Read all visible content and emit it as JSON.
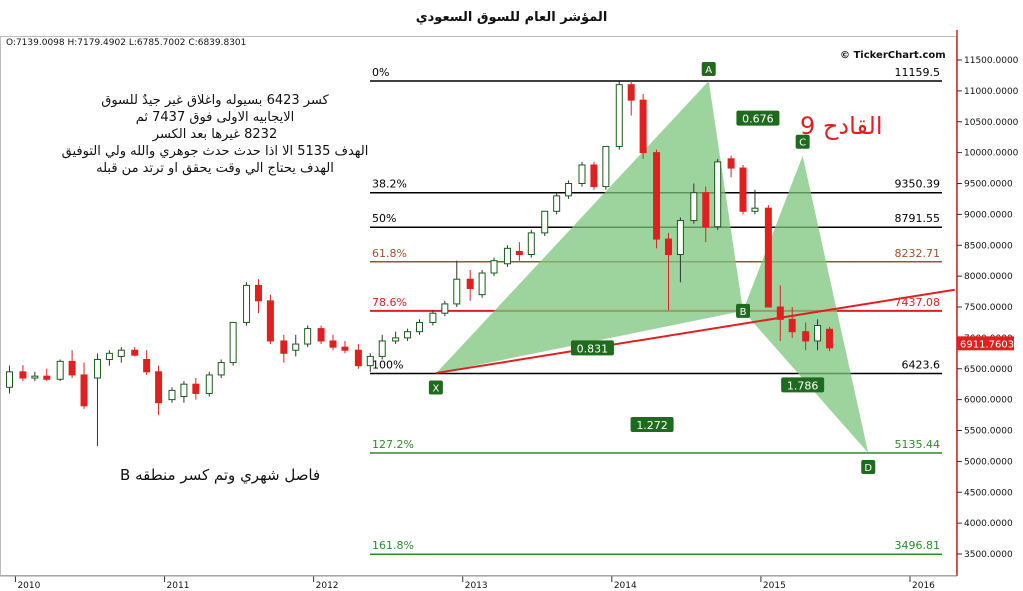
{
  "title": "المؤشر العام للسوق السعودي",
  "ohlc_readout": "O:7139.0098 H:7179.4902 L:6785.7002 C:6839.8301",
  "brand": "© TickerChart.com",
  "notes": {
    "top_lines": [
      "كسر 6423 بسيوله واغلاق غير جيدٌ للسوق",
      "الايجابيه الاولى فوق 7437 ثم",
      "8232 غيرها بعد الكسر",
      "الهدف 5135 الا اذا حدث حدث جوهري والله ولي التوفيق",
      "الهدف يحتاج الي وقت يحقق او ترتد من قبله"
    ],
    "next_label": "القادح 9",
    "bottom_note": "فاصل شهري وتم كسر منطقه B"
  },
  "colors": {
    "up_candle": "#1a7a1a",
    "down_candle": "#e02020",
    "pattern_fill": "#7cc57c",
    "trendline": "#e02020",
    "current_price_bg": "#e02020",
    "axis_border": "#e02020"
  },
  "chart_data": {
    "type": "candlestick",
    "title": "المؤشر العام للسوق السعودي",
    "interval": "monthly",
    "x_ticks": [
      "2010",
      "2011",
      "2012",
      "2013",
      "2014",
      "2015",
      "2016"
    ],
    "y_ticks": [
      "3500.0000",
      "4000.0000",
      "4500.0000",
      "5000.0000",
      "5500.0000",
      "6000.0000",
      "6500.0000",
      "7000.0000",
      "7500.0000",
      "8000.0000",
      "8500.0000",
      "9000.0000",
      "9500.0000",
      "10000.0000",
      "10500.0000",
      "11000.0000",
      "11500.0000"
    ],
    "ylim": [
      3300,
      12000
    ],
    "current_price": "6911.7603",
    "fib_levels": [
      {
        "pct": "0%",
        "value": "11159.5",
        "color": "#000000"
      },
      {
        "pct": "38.2%",
        "value": "9350.39",
        "color": "#000000"
      },
      {
        "pct": "50%",
        "value": "8791.55",
        "color": "#000000"
      },
      {
        "pct": "61.8%",
        "value": "8232.71",
        "color": "#a0522d"
      },
      {
        "pct": "78.6%",
        "value": "7437.08",
        "color": "#e02020"
      },
      {
        "pct": "100%",
        "value": "6423.6",
        "color": "#000000"
      },
      {
        "pct": "127.2%",
        "value": "5135.44",
        "color": "#2e8b2e"
      },
      {
        "pct": "161.8%",
        "value": "3496.81",
        "color": "#2e8b2e"
      }
    ],
    "pattern_points": [
      {
        "label": "X",
        "x": 2012.82,
        "y": 6423
      },
      {
        "label": "A",
        "x": 2014.65,
        "y": 11159
      },
      {
        "label": "B",
        "x": 2014.88,
        "y": 7437
      },
      {
        "label": "C",
        "x": 2015.28,
        "y": 9950
      },
      {
        "label": "D",
        "x": 2015.72,
        "y": 5135
      }
    ],
    "ratios": [
      {
        "label": "0.676",
        "x": 2014.98,
        "y": 10550
      },
      {
        "label": "0.831",
        "x": 2013.87,
        "y": 6830
      },
      {
        "label": "1.786",
        "x": 2015.28,
        "y": 6230
      },
      {
        "label": "1.272",
        "x": 2014.27,
        "y": 5590
      }
    ],
    "trendline": [
      {
        "x": 2012.82,
        "y": 6430
      },
      {
        "x": 2016.3,
        "y": 7780
      }
    ],
    "candles": [
      {
        "x": 2009.96,
        "o": 6200,
        "h": 6550,
        "l": 6100,
        "c": 6450
      },
      {
        "x": 2010.05,
        "o": 6450,
        "h": 6560,
        "l": 6300,
        "c": 6350
      },
      {
        "x": 2010.13,
        "o": 6350,
        "h": 6450,
        "l": 6300,
        "c": 6380
      },
      {
        "x": 2010.21,
        "o": 6380,
        "h": 6500,
        "l": 6300,
        "c": 6330
      },
      {
        "x": 2010.3,
        "o": 6330,
        "h": 6650,
        "l": 6300,
        "c": 6620
      },
      {
        "x": 2010.38,
        "o": 6620,
        "h": 6800,
        "l": 6350,
        "c": 6400
      },
      {
        "x": 2010.46,
        "o": 6400,
        "h": 6600,
        "l": 5850,
        "c": 5900
      },
      {
        "x": 2010.55,
        "o": 6350,
        "h": 6750,
        "l": 5250,
        "c": 6650
      },
      {
        "x": 2010.63,
        "o": 6650,
        "h": 6800,
        "l": 6550,
        "c": 6750
      },
      {
        "x": 2010.71,
        "o": 6700,
        "h": 6850,
        "l": 6600,
        "c": 6800
      },
      {
        "x": 2010.8,
        "o": 6800,
        "h": 6850,
        "l": 6700,
        "c": 6720
      },
      {
        "x": 2010.88,
        "o": 6650,
        "h": 6800,
        "l": 6400,
        "c": 6450
      },
      {
        "x": 2010.96,
        "o": 6450,
        "h": 6550,
        "l": 5750,
        "c": 5950
      },
      {
        "x": 2011.05,
        "o": 6000,
        "h": 6200,
        "l": 5950,
        "c": 6150
      },
      {
        "x": 2011.13,
        "o": 6050,
        "h": 6300,
        "l": 5950,
        "c": 6250
      },
      {
        "x": 2011.21,
        "o": 6250,
        "h": 6350,
        "l": 6000,
        "c": 6100
      },
      {
        "x": 2011.3,
        "o": 6100,
        "h": 6450,
        "l": 6050,
        "c": 6400
      },
      {
        "x": 2011.38,
        "o": 6400,
        "h": 6650,
        "l": 6350,
        "c": 6600
      },
      {
        "x": 2011.46,
        "o": 6600,
        "h": 7250,
        "l": 6550,
        "c": 7250
      },
      {
        "x": 2011.55,
        "o": 7250,
        "h": 7900,
        "l": 7200,
        "c": 7850
      },
      {
        "x": 2011.63,
        "o": 7850,
        "h": 7950,
        "l": 7400,
        "c": 7600
      },
      {
        "x": 2011.71,
        "o": 7600,
        "h": 7700,
        "l": 6900,
        "c": 6950
      },
      {
        "x": 2011.8,
        "o": 6950,
        "h": 7050,
        "l": 6600,
        "c": 6750
      },
      {
        "x": 2011.88,
        "o": 6800,
        "h": 7050,
        "l": 6700,
        "c": 6900
      },
      {
        "x": 2011.96,
        "o": 6900,
        "h": 7200,
        "l": 6850,
        "c": 7150
      },
      {
        "x": 2012.05,
        "o": 7150,
        "h": 7200,
        "l": 6900,
        "c": 6950
      },
      {
        "x": 2012.13,
        "o": 6950,
        "h": 7050,
        "l": 6800,
        "c": 6850
      },
      {
        "x": 2012.21,
        "o": 6850,
        "h": 6950,
        "l": 6750,
        "c": 6800
      },
      {
        "x": 2012.3,
        "o": 6800,
        "h": 6900,
        "l": 6500,
        "c": 6550
      },
      {
        "x": 2012.38,
        "o": 6550,
        "h": 6750,
        "l": 6450,
        "c": 6700
      },
      {
        "x": 2012.46,
        "o": 6700,
        "h": 7050,
        "l": 6650,
        "c": 6950
      },
      {
        "x": 2012.55,
        "o": 6950,
        "h": 7100,
        "l": 6900,
        "c": 7000
      },
      {
        "x": 2012.63,
        "o": 7000,
        "h": 7150,
        "l": 6950,
        "c": 7100
      },
      {
        "x": 2012.71,
        "o": 7100,
        "h": 7300,
        "l": 7050,
        "c": 7250
      },
      {
        "x": 2012.8,
        "o": 7250,
        "h": 7450,
        "l": 7200,
        "c": 7400
      },
      {
        "x": 2012.88,
        "o": 7400,
        "h": 7600,
        "l": 7350,
        "c": 7550
      },
      {
        "x": 2012.96,
        "o": 7550,
        "h": 8250,
        "l": 7500,
        "c": 7950
      },
      {
        "x": 2013.05,
        "o": 7950,
        "h": 8100,
        "l": 7600,
        "c": 7800
      },
      {
        "x": 2013.13,
        "o": 7700,
        "h": 8100,
        "l": 7650,
        "c": 8050
      },
      {
        "x": 2013.21,
        "o": 8050,
        "h": 8300,
        "l": 8000,
        "c": 8250
      },
      {
        "x": 2013.3,
        "o": 8200,
        "h": 8500,
        "l": 8150,
        "c": 8450
      },
      {
        "x": 2013.38,
        "o": 8400,
        "h": 8550,
        "l": 8250,
        "c": 8350
      },
      {
        "x": 2013.46,
        "o": 8350,
        "h": 8750,
        "l": 8300,
        "c": 8700
      },
      {
        "x": 2013.55,
        "o": 8700,
        "h": 9050,
        "l": 8650,
        "c": 9050
      },
      {
        "x": 2013.63,
        "o": 9050,
        "h": 9350,
        "l": 9000,
        "c": 9300
      },
      {
        "x": 2013.71,
        "o": 9300,
        "h": 9550,
        "l": 9250,
        "c": 9500
      },
      {
        "x": 2013.8,
        "o": 9500,
        "h": 9850,
        "l": 9450,
        "c": 9800
      },
      {
        "x": 2013.88,
        "o": 9800,
        "h": 9850,
        "l": 9400,
        "c": 9450
      },
      {
        "x": 2013.96,
        "o": 9450,
        "h": 10100,
        "l": 9400,
        "c": 10100
      },
      {
        "x": 2014.05,
        "o": 10100,
        "h": 11150,
        "l": 10050,
        "c": 11100
      },
      {
        "x": 2014.13,
        "o": 11100,
        "h": 11160,
        "l": 10600,
        "c": 10850
      },
      {
        "x": 2014.21,
        "o": 10850,
        "h": 10950,
        "l": 9900,
        "c": 10000
      },
      {
        "x": 2014.3,
        "o": 10000,
        "h": 10050,
        "l": 8450,
        "c": 8600
      },
      {
        "x": 2014.38,
        "o": 8600,
        "h": 8700,
        "l": 7450,
        "c": 8350
      },
      {
        "x": 2014.46,
        "o": 8350,
        "h": 8950,
        "l": 7900,
        "c": 8900
      },
      {
        "x": 2014.55,
        "o": 8900,
        "h": 9500,
        "l": 8850,
        "c": 9350
      },
      {
        "x": 2014.63,
        "o": 9350,
        "h": 9450,
        "l": 8550,
        "c": 8800
      },
      {
        "x": 2014.71,
        "o": 8800,
        "h": 9900,
        "l": 8750,
        "c": 9850
      },
      {
        "x": 2014.8,
        "o": 9900,
        "h": 9950,
        "l": 9600,
        "c": 9750
      },
      {
        "x": 2014.88,
        "o": 9750,
        "h": 9800,
        "l": 9000,
        "c": 9050
      },
      {
        "x": 2014.96,
        "o": 9050,
        "h": 9400,
        "l": 9000,
        "c": 9100
      },
      {
        "x": 2015.05,
        "o": 9100,
        "h": 9150,
        "l": 7500,
        "c": 7500
      },
      {
        "x": 2015.13,
        "o": 7500,
        "h": 7850,
        "l": 6950,
        "c": 7300
      },
      {
        "x": 2015.21,
        "o": 7300,
        "h": 7500,
        "l": 7000,
        "c": 7100
      },
      {
        "x": 2015.3,
        "o": 7100,
        "h": 7250,
        "l": 6800,
        "c": 6950
      },
      {
        "x": 2015.38,
        "o": 6950,
        "h": 7300,
        "l": 6800,
        "c": 7200
      },
      {
        "x": 2015.46,
        "o": 7139,
        "h": 7179,
        "l": 6785,
        "c": 6839
      }
    ]
  }
}
